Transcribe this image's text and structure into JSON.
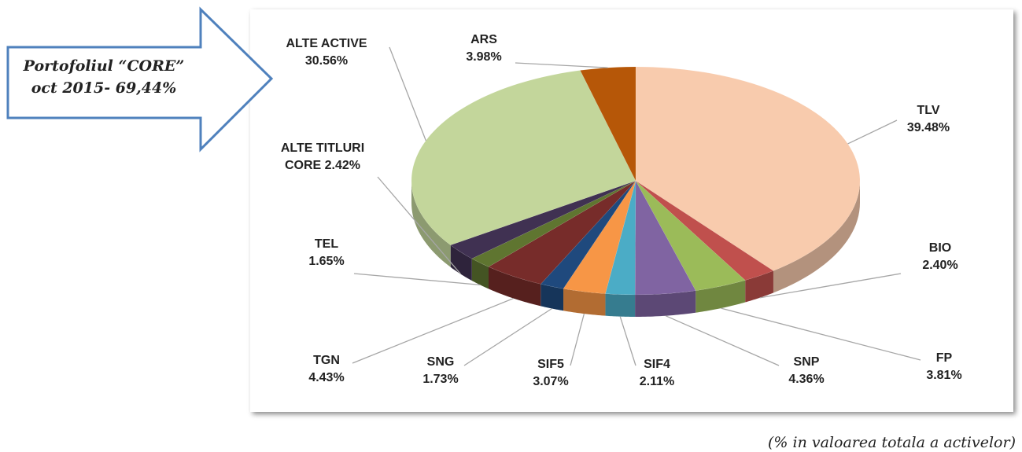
{
  "chart_data": {
    "type": "pie",
    "categories": [
      "TLV",
      "BIO",
      "FP",
      "SNP",
      "SIF4",
      "SIF5",
      "SNG",
      "TGN",
      "TEL",
      "ALTE TITLURI CORE",
      "ALTE ACTIVE",
      "ARS"
    ],
    "values": [
      39.48,
      2.4,
      3.81,
      4.36,
      2.11,
      3.07,
      1.73,
      4.43,
      1.65,
      2.42,
      30.56,
      3.98
    ],
    "value_labels": [
      "39.48%",
      "2.40%",
      "3.81%",
      "4.36%",
      "2.11%",
      "3.07%",
      "1.73%",
      "4.43%",
      "1.65%",
      "2.42%",
      "30.56%",
      "3.98%"
    ],
    "colors": [
      "#f8cbad",
      "#c0504d",
      "#9bbb59",
      "#8064a2",
      "#4bacc6",
      "#f79646",
      "#1f497d",
      "#772c2a",
      "#5f7530",
      "#403152",
      "#c3d69b",
      "#b65708"
    ]
  },
  "callout": {
    "line1": "Portofoliul “CORE”",
    "line2": "oct 2015- 69,44%"
  },
  "footnote": "(% in valoarea totala a activelor)"
}
